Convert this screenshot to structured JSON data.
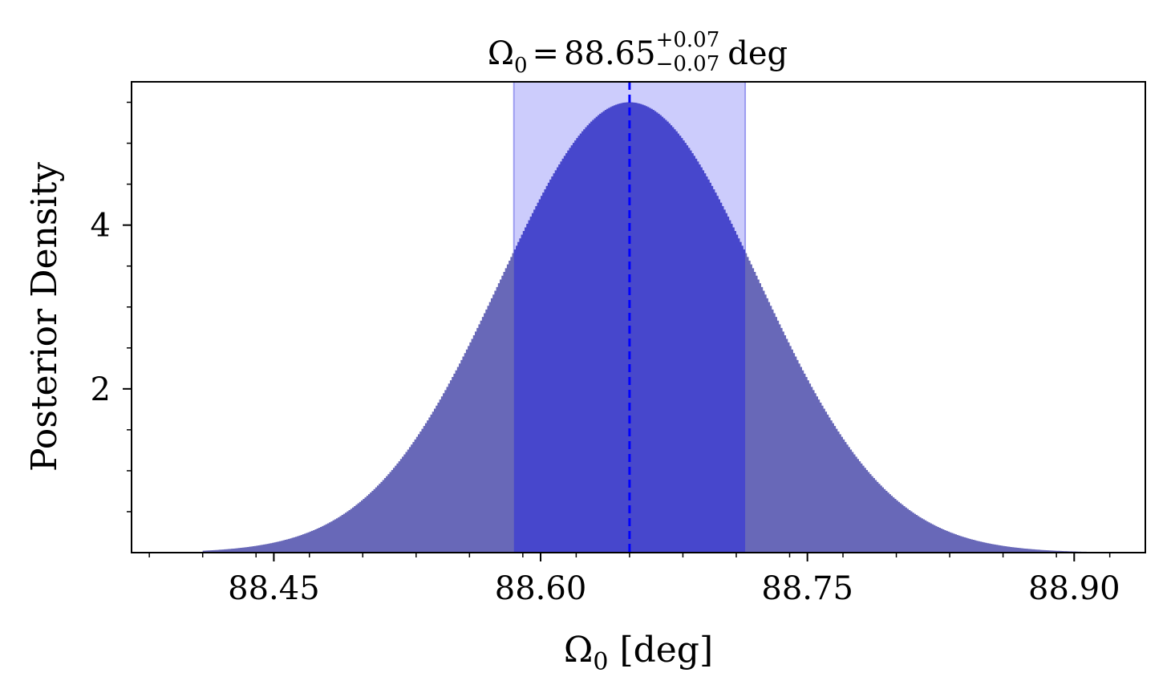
{
  "chart_data": {
    "type": "area",
    "title": {
      "symbol": "Ω",
      "subscript": "0",
      "equals": "=",
      "value": "88.65",
      "upper": "+0.07",
      "lower": "−0.07",
      "unit": "deg"
    },
    "xlabel": {
      "symbol": "Ω",
      "subscript": "0",
      "unit": "[deg]"
    },
    "ylabel": "Posterior Density",
    "xlim": [
      88.37,
      88.94
    ],
    "ylim": [
      0,
      5.75
    ],
    "x_ticks": [
      {
        "value": 88.45,
        "label": "88.45"
      },
      {
        "value": 88.6,
        "label": "88.60"
      },
      {
        "value": 88.75,
        "label": "88.75"
      },
      {
        "value": 88.9,
        "label": "88.90"
      }
    ],
    "x_minor_step": 0.03,
    "y_ticks": [
      {
        "value": 2,
        "label": "2"
      },
      {
        "value": 4,
        "label": "4"
      }
    ],
    "y_minor_step": 0.5,
    "posterior": {
      "mean": 88.65,
      "sigma": 0.0725,
      "peak": 5.5,
      "x_min": 88.41,
      "x_max": 88.91
    },
    "median": 88.65,
    "credible_interval": [
      88.585,
      88.715
    ],
    "colors": {
      "fill": "#6868b8",
      "interval_overlay": "#3a3ad4",
      "interval_band": "#ccccfc",
      "median_line": "#0000ff"
    }
  }
}
